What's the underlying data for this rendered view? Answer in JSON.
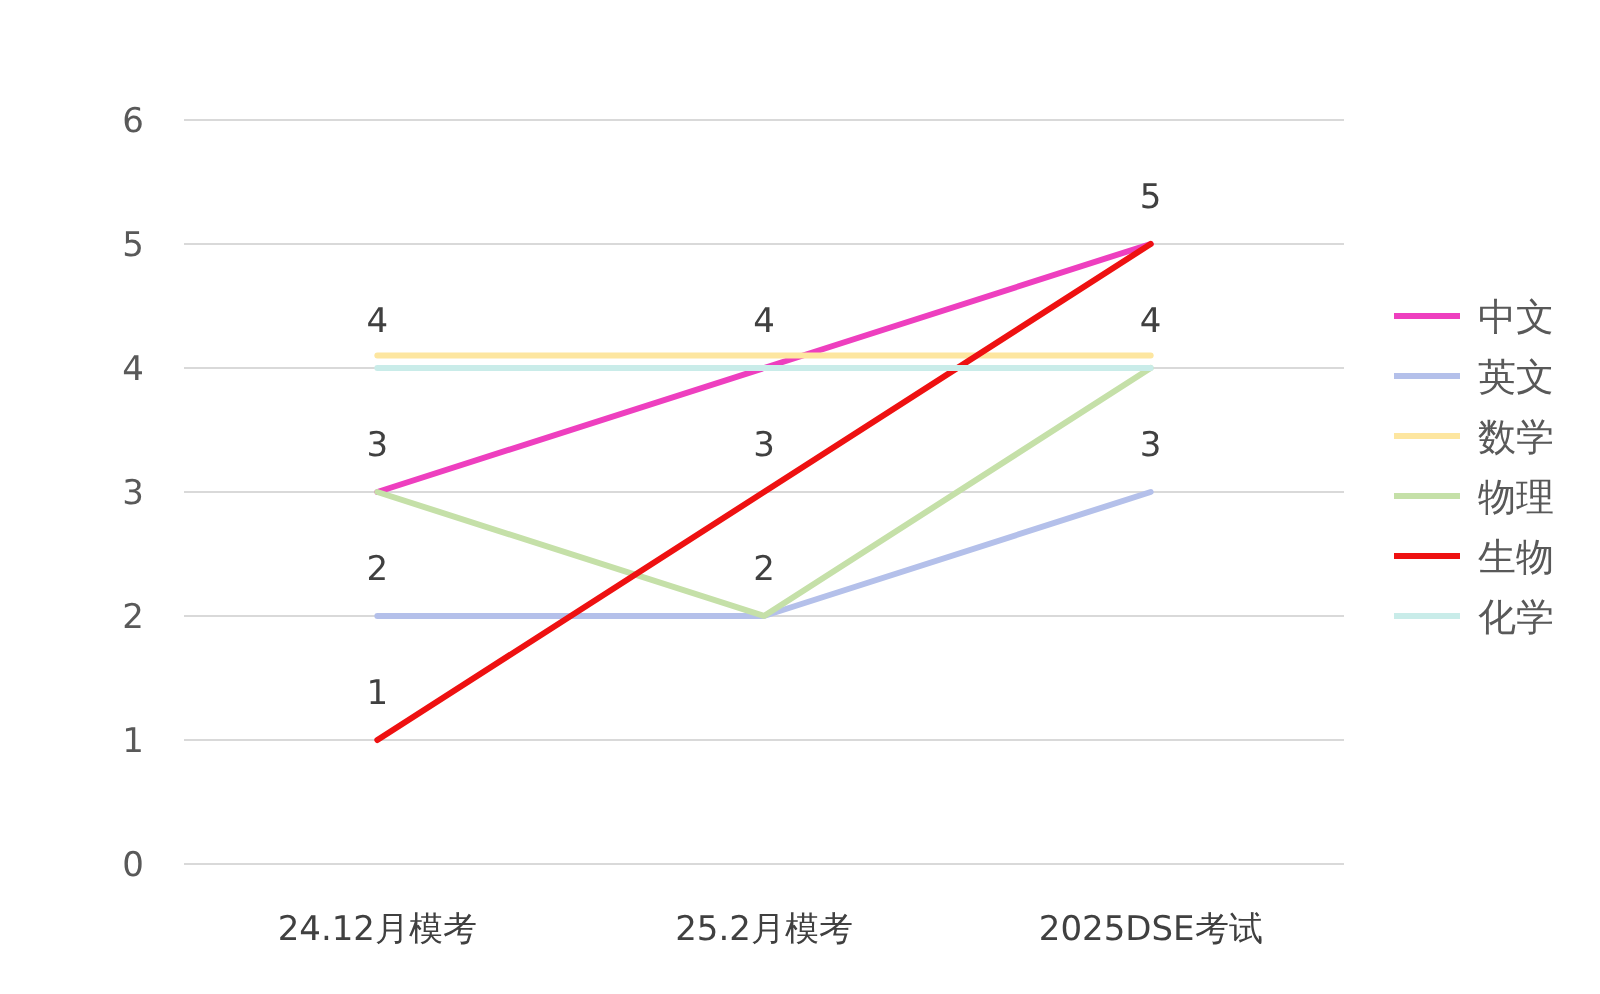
{
  "chart_data": {
    "type": "line",
    "categories": [
      "24.12月模考",
      "25.2月模考",
      "2025DSE考试"
    ],
    "ylim": [
      0,
      6
    ],
    "yticks": [
      0,
      1,
      2,
      3,
      4,
      5,
      6
    ],
    "grid": "y",
    "legend": "right",
    "marker": "none",
    "line_style": "solid",
    "series": [
      {
        "name": "中文",
        "color": "#ee3fbf",
        "values": [
          3,
          4,
          5
        ],
        "value_labels": [
          "3",
          "4",
          "5"
        ]
      },
      {
        "name": "英文",
        "color": "#b4c0ea",
        "values": [
          2,
          2,
          3
        ],
        "value_labels": [
          "2",
          "2",
          "3"
        ]
      },
      {
        "name": "数学",
        "color": "#fde6a0",
        "values": [
          4.1,
          4.1,
          4.1
        ]
      },
      {
        "name": "物理",
        "color": "#c5e0a8",
        "values": [
          3,
          2,
          4
        ],
        "value_labels": [
          null,
          null,
          "4"
        ]
      },
      {
        "name": "生物",
        "color": "#ee1111",
        "values": [
          1,
          3,
          5
        ],
        "value_labels": [
          "1",
          "3",
          null
        ]
      },
      {
        "name": "化学",
        "color": "#c9ece9",
        "values": [
          4,
          4,
          4
        ],
        "value_labels": [
          "4",
          null,
          null
        ]
      }
    ]
  }
}
